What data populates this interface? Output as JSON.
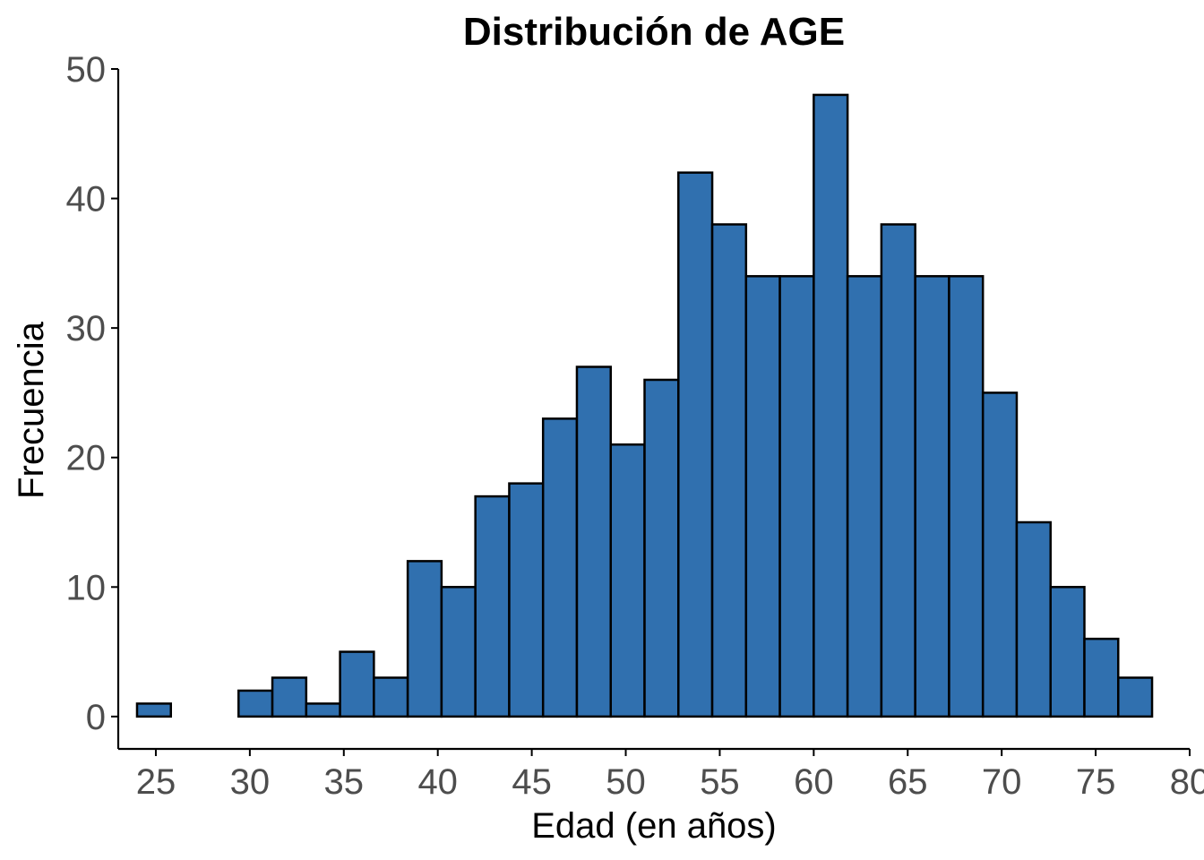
{
  "chart_data": {
    "type": "bar",
    "title": "Distribución de AGE",
    "xlabel": "Edad (en años)",
    "ylabel": "Frecuencia",
    "bin_edges": [
      24.0,
      25.8,
      27.6,
      29.4,
      31.2,
      33.0,
      34.8,
      36.6,
      38.4,
      40.2,
      42.0,
      43.8,
      45.6,
      47.4,
      49.2,
      51.0,
      52.8,
      54.6,
      56.4,
      58.2,
      60.0,
      61.8,
      63.6,
      65.4,
      67.2,
      69.0,
      70.8,
      72.6,
      74.4,
      76.2,
      78.0
    ],
    "values": [
      1,
      0,
      0,
      2,
      3,
      1,
      5,
      3,
      12,
      10,
      17,
      18,
      23,
      27,
      21,
      26,
      42,
      38,
      34,
      34,
      48,
      34,
      38,
      34,
      34,
      25,
      15,
      10,
      6,
      3
    ],
    "xlim": [
      23,
      80
    ],
    "ylim": [
      -2.5,
      50
    ],
    "x_ticks": [
      25,
      30,
      35,
      40,
      45,
      50,
      55,
      60,
      65,
      70,
      75,
      80
    ],
    "x_tick_labels": [
      "25",
      "30",
      "35",
      "40",
      "45",
      "50",
      "55",
      "60",
      "65",
      "70",
      "75",
      "80"
    ],
    "y_ticks": [
      0,
      10,
      20,
      30,
      40,
      50
    ],
    "y_tick_labels": [
      "0",
      "10",
      "20",
      "30",
      "40",
      "50"
    ],
    "grid": false,
    "colors": {
      "fill": "#3070AF",
      "outline": "#000000"
    }
  }
}
